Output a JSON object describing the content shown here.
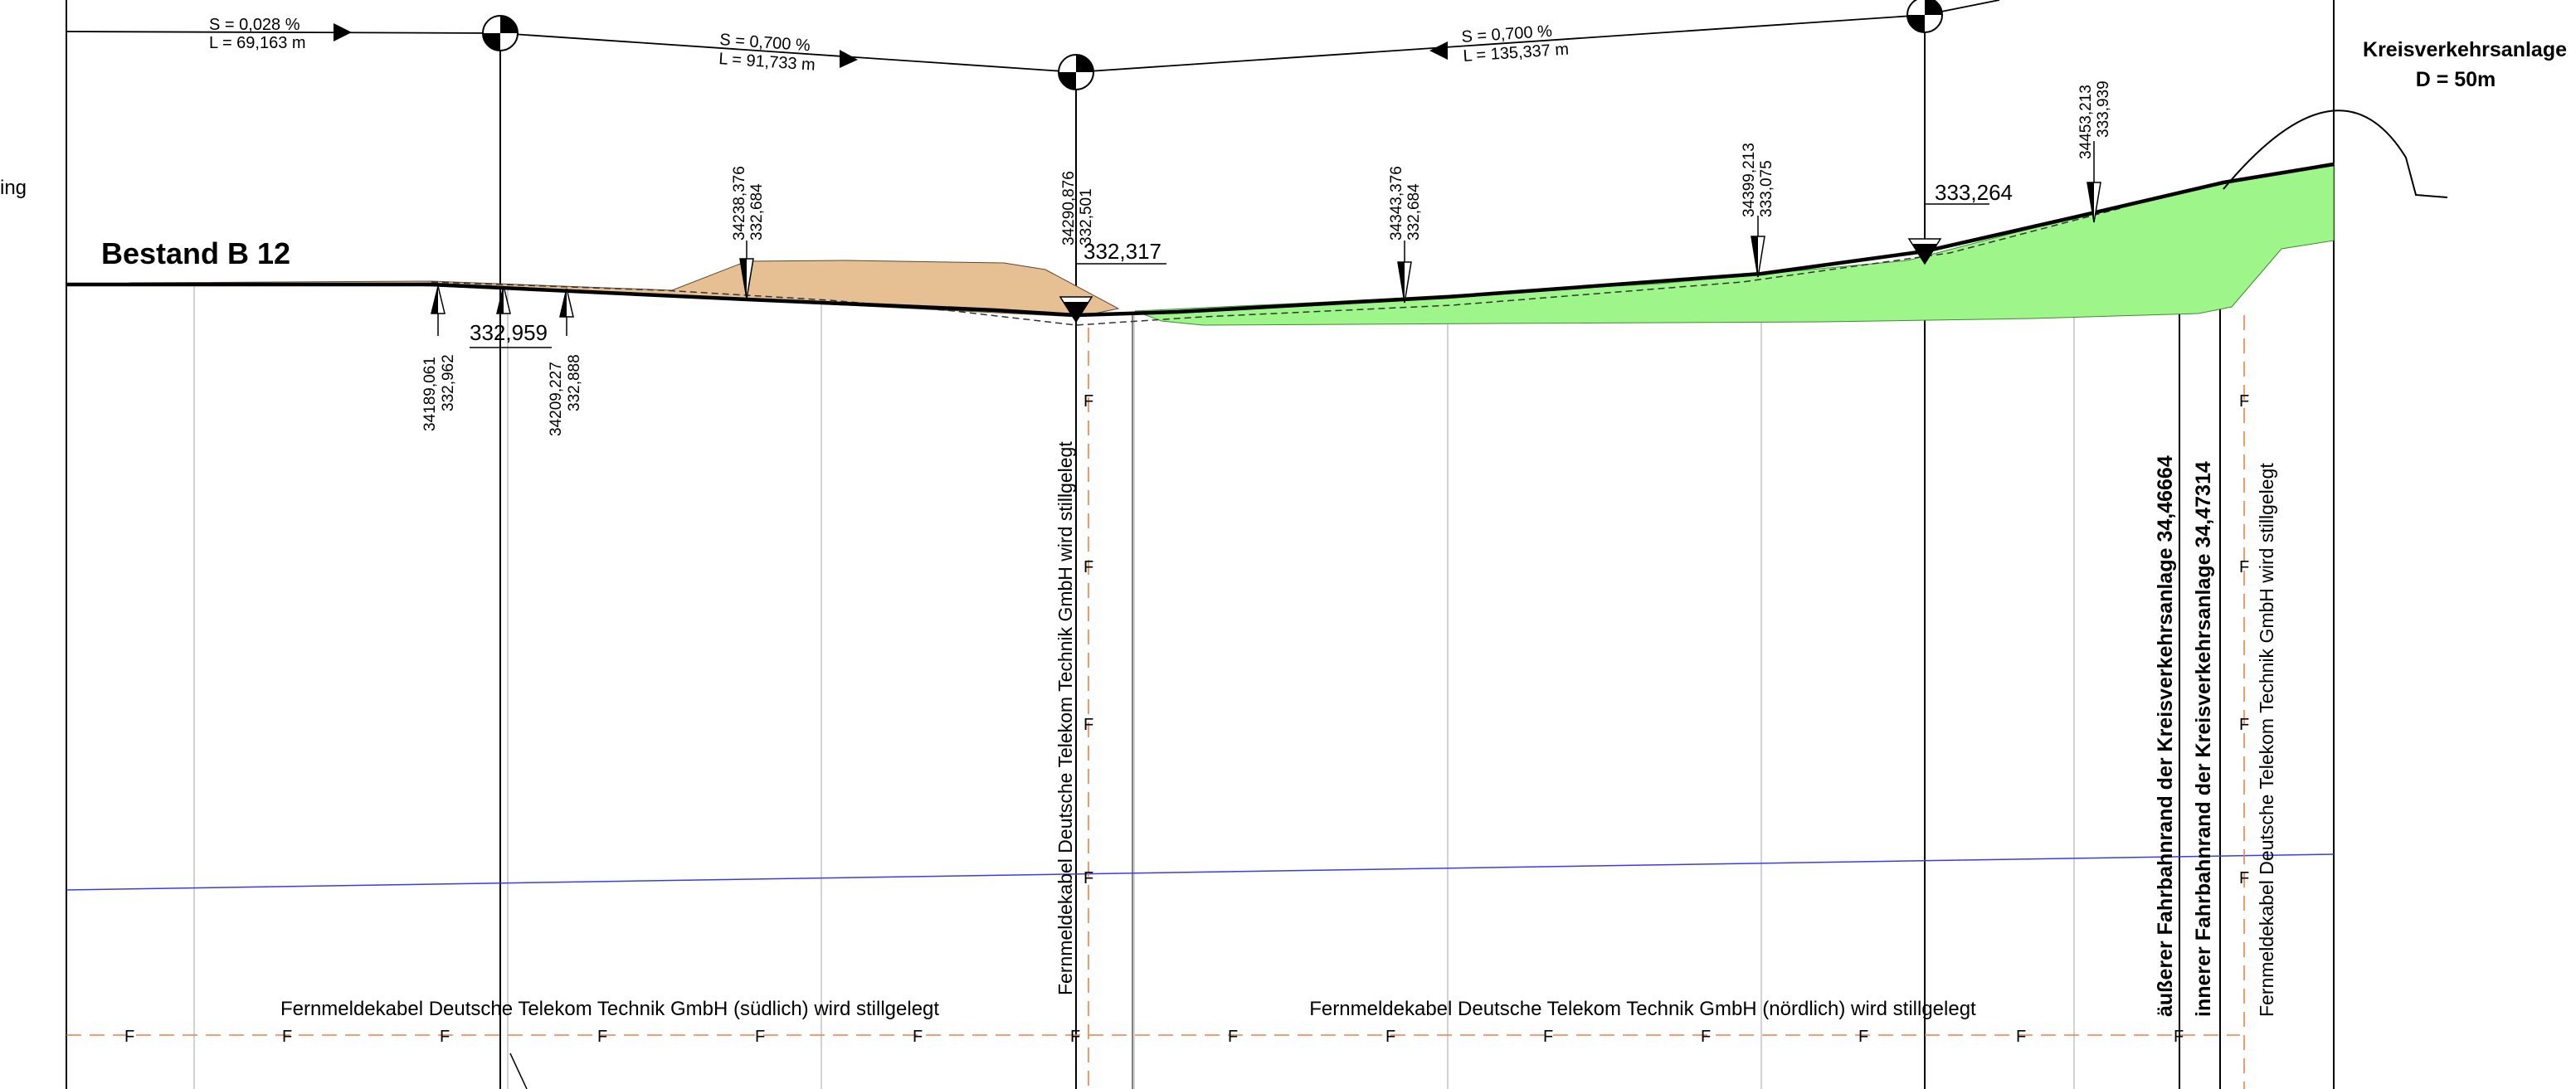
{
  "title": {
    "left_fragment": "ing",
    "bestand": "Bestand B 12",
    "roundabout_1": "Kreisverkehrsanlage",
    "roundabout_2": "D = 50m"
  },
  "gradients": [
    {
      "s": "S = 0,028 %",
      "l": "L = 69,163 m"
    },
    {
      "s": "S = 0,700 %",
      "l": "L = 91,733 m"
    },
    {
      "s": "S = 0,700 %",
      "l": "L = 135,337 m"
    }
  ],
  "heights": {
    "h1": "332,959",
    "h2": "332,317",
    "h3": "333,264"
  },
  "point_labels": [
    {
      "station": "34189,061",
      "elevation": "332,962"
    },
    {
      "station": "34209,227",
      "elevation": "332,888"
    },
    {
      "station": "34238,376",
      "elevation": "332,684"
    },
    {
      "station": "34290,876",
      "elevation": "332,501"
    },
    {
      "station": "34343,376",
      "elevation": "332,684"
    },
    {
      "station": "34399,213",
      "elevation": "333,075"
    },
    {
      "station": "34453,213",
      "elevation": "333,939"
    }
  ],
  "cables": {
    "sued": "Fernmeldekabel Deutsche Telekom Technik GmbH (südlich) wird stillgelegt",
    "nord": "Fernmeldekabel Deutsche Telekom Technik GmbH (nördlich) wird stillgelegt",
    "vertical_1": "Fernmeldekabel Deutsche Telekom Technik GmbH wird stillgelegt",
    "vertical_2": "Fernmeldekabel Deutsche Telekom Technik GmbH wird stillgelegt",
    "marker": "F"
  },
  "edges": {
    "outer": "äußerer Fahrbahnrand der Kreisverkehrsanlage 34,46664",
    "inner": "innerer Fahrbahnrand der Kreisverkehrsanlage 34,47314"
  },
  "colors": {
    "fill_cut": "#e6bf93",
    "fill_fill": "#9ef58a",
    "cable": "#ee8144",
    "water": "#3a3af0",
    "grid": "#b9b9b9"
  }
}
